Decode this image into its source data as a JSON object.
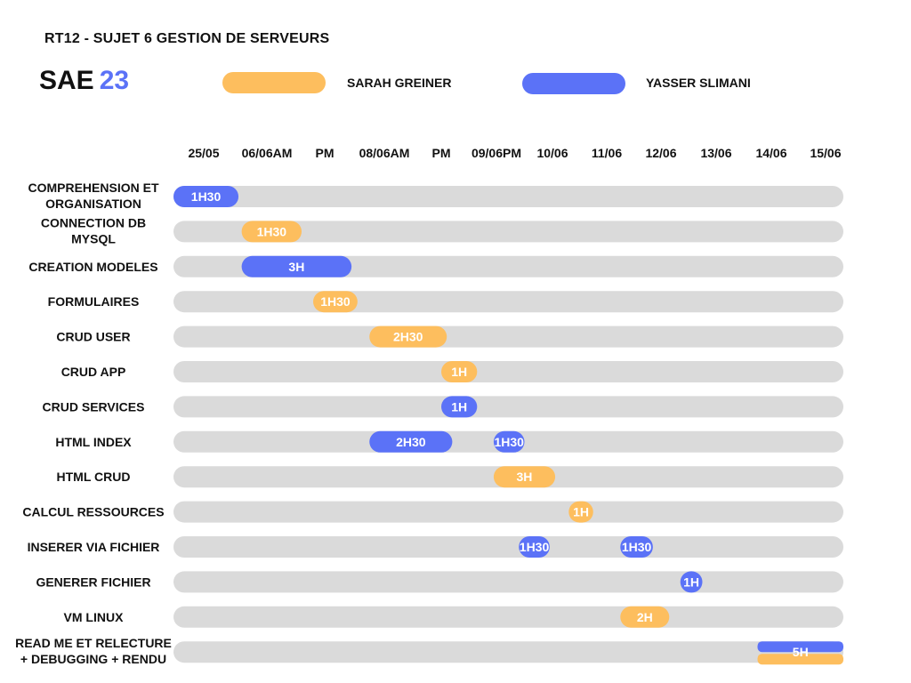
{
  "header": {
    "subtitle": "RT12 - SUJET 6 GESTION DE SERVEURS",
    "logo_main": "SAE",
    "logo_accent": "23"
  },
  "legend": [
    {
      "label": "SARAH GREINER",
      "color": "#fdbe5e"
    },
    {
      "label": "YASSER SLIMANI",
      "color": "#5b72f7"
    }
  ],
  "colors": {
    "track": "#dadada",
    "sarah": "#fdbe5e",
    "yasser": "#5b72f7",
    "bar_text": "#ffffff"
  },
  "chart_data": {
    "type": "gantt",
    "columns": [
      "25/05",
      "06/06AM",
      "PM",
      "08/06AM",
      "PM",
      "09/06PM",
      "10/06",
      "11/06",
      "12/06",
      "13/06",
      "14/06",
      "15/06"
    ],
    "series": [
      {
        "name": "SARAH GREINER",
        "key": "sarah"
      },
      {
        "name": "YASSER SLIMANI",
        "key": "yasser"
      }
    ],
    "tasks": [
      {
        "label": [
          "COMPREHENSION ET",
          "ORGANISATION"
        ],
        "bars": [
          {
            "who": "yasser",
            "start": 0,
            "end": 0.55,
            "label": "1H30"
          }
        ]
      },
      {
        "label": [
          "CONNECTION DB",
          "MYSQL"
        ],
        "bars": [
          {
            "who": "sarah",
            "start": 0.6,
            "end": 1.6,
            "label": "1H30"
          }
        ]
      },
      {
        "label": [
          "CREATION MODELES"
        ],
        "bars": [
          {
            "who": "yasser",
            "start": 0.6,
            "end": 2.45,
            "label": "3H"
          }
        ]
      },
      {
        "label": [
          "FORMULAIRES"
        ],
        "bars": [
          {
            "who": "sarah",
            "start": 1.8,
            "end": 2.55,
            "label": "1H30"
          }
        ]
      },
      {
        "label": [
          "CRUD USER"
        ],
        "bars": [
          {
            "who": "sarah",
            "start": 2.75,
            "end": 4.1,
            "label": "2H30"
          }
        ]
      },
      {
        "label": [
          "CRUD APP"
        ],
        "bars": [
          {
            "who": "sarah",
            "start": 4.0,
            "end": 4.65,
            "label": "1H"
          }
        ]
      },
      {
        "label": [
          "CRUD SERVICES"
        ],
        "bars": [
          {
            "who": "yasser",
            "start": 4.0,
            "end": 4.65,
            "label": "1H"
          }
        ]
      },
      {
        "label": [
          "HTML INDEX"
        ],
        "bars": [
          {
            "who": "yasser",
            "start": 2.75,
            "end": 4.2,
            "label": "2H30"
          },
          {
            "who": "yasser",
            "start": 4.95,
            "end": 5.5,
            "label": "1H30"
          }
        ]
      },
      {
        "label": [
          "HTML CRUD"
        ],
        "bars": [
          {
            "who": "sarah",
            "start": 4.95,
            "end": 6.05,
            "label": "3H"
          }
        ]
      },
      {
        "label": [
          "CALCUL RESSOURCES"
        ],
        "bars": [
          {
            "who": "sarah",
            "start": 6.3,
            "end": 6.75,
            "label": "1H"
          }
        ]
      },
      {
        "label": [
          "INSERER VIA FICHIER"
        ],
        "bars": [
          {
            "who": "yasser",
            "start": 5.4,
            "end": 5.95,
            "label": "1H30"
          },
          {
            "who": "yasser",
            "start": 7.25,
            "end": 7.85,
            "label": "1H30"
          }
        ]
      },
      {
        "label": [
          "GENERER FICHIER"
        ],
        "bars": [
          {
            "who": "yasser",
            "start": 8.35,
            "end": 8.75,
            "label": "1H"
          }
        ]
      },
      {
        "label": [
          "VM LINUX"
        ],
        "bars": [
          {
            "who": "sarah",
            "start": 7.25,
            "end": 8.15,
            "label": "2H"
          }
        ]
      },
      {
        "label": [
          "READ ME ET RELECTURE",
          "+ DEBUGGING + RENDU"
        ],
        "bars": [
          {
            "who": "yasser",
            "start": 9.75,
            "end": 12,
            "label": "5H",
            "half": "top"
          },
          {
            "who": "sarah",
            "start": 9.75,
            "end": 12,
            "label": "",
            "half": "bottom"
          }
        ]
      }
    ]
  }
}
